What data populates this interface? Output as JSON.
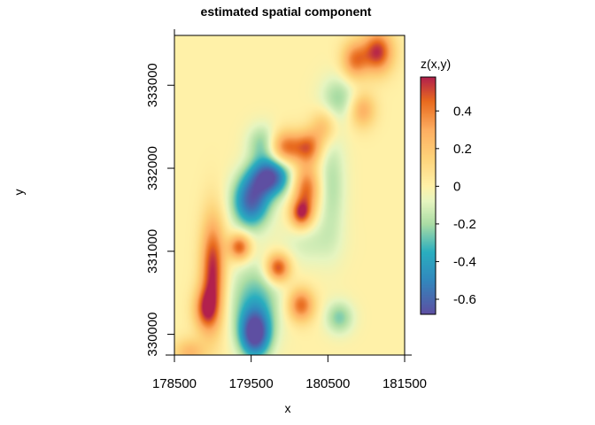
{
  "chart_data": {
    "type": "heatmap",
    "title": "estimated spatial component",
    "xlabel": "x",
    "ylabel": "y",
    "xlim": [
      178500,
      181500
    ],
    "ylim": [
      329750,
      333600
    ],
    "xticks": [
      178500,
      179500,
      180500,
      181500
    ],
    "xtick_labels": [
      "178500",
      "179500",
      "180500",
      "181500"
    ],
    "yticks": [
      330000,
      331000,
      332000,
      333000
    ],
    "ytick_labels": [
      "330000",
      "331000",
      "332000",
      "333000"
    ],
    "colorbar": {
      "title": "z(x,y)",
      "range": [
        -0.68,
        0.58
      ],
      "ticks": [
        0.4,
        0.2,
        0,
        -0.2,
        -0.4,
        -0.6
      ],
      "tick_labels": [
        "0.4",
        "0.2",
        "0",
        "-0.2",
        "-0.4",
        "-0.6"
      ],
      "stops": [
        {
          "value": -0.68,
          "color": "#5e4fa2"
        },
        {
          "value": -0.5,
          "color": "#3288bd"
        },
        {
          "value": -0.35,
          "color": "#2aaebf"
        },
        {
          "value": -0.2,
          "color": "#abdda4"
        },
        {
          "value": -0.08,
          "color": "#e6f5c0"
        },
        {
          "value": 0,
          "color": "#fff1a8"
        },
        {
          "value": 0.15,
          "color": "#fdd37a"
        },
        {
          "value": 0.3,
          "color": "#fdae61"
        },
        {
          "value": 0.45,
          "color": "#e86a1e"
        },
        {
          "value": 0.58,
          "color": "#b2204d"
        }
      ]
    },
    "features": [
      {
        "x": 181150,
        "y": 333400,
        "z": 0.55,
        "sx": 140,
        "sy": 180
      },
      {
        "x": 180850,
        "y": 333300,
        "z": 0.4,
        "sx": 120,
        "sy": 160
      },
      {
        "x": 180650,
        "y": 332850,
        "z": -0.2,
        "sx": 170,
        "sy": 190
      },
      {
        "x": 180950,
        "y": 332700,
        "z": 0.3,
        "sx": 120,
        "sy": 150
      },
      {
        "x": 180450,
        "y": 332500,
        "z": 0.25,
        "sx": 120,
        "sy": 150
      },
      {
        "x": 179950,
        "y": 332250,
        "z": 0.45,
        "sx": 150,
        "sy": 140
      },
      {
        "x": 180250,
        "y": 332250,
        "z": 0.4,
        "sx": 120,
        "sy": 140
      },
      {
        "x": 180220,
        "y": 331750,
        "z": 0.45,
        "sx": 120,
        "sy": 200
      },
      {
        "x": 180150,
        "y": 331450,
        "z": 0.5,
        "sx": 100,
        "sy": 120
      },
      {
        "x": 180550,
        "y": 331800,
        "z": -0.18,
        "sx": 130,
        "sy": 500
      },
      {
        "x": 180250,
        "y": 331100,
        "z": -0.12,
        "sx": 250,
        "sy": 200
      },
      {
        "x": 179750,
        "y": 331900,
        "z": -0.65,
        "sx": 180,
        "sy": 160
      },
      {
        "x": 179500,
        "y": 331600,
        "z": -0.6,
        "sx": 170,
        "sy": 220
      },
      {
        "x": 179650,
        "y": 332300,
        "z": -0.25,
        "sx": 140,
        "sy": 160
      },
      {
        "x": 179350,
        "y": 331050,
        "z": 0.5,
        "sx": 100,
        "sy": 110
      },
      {
        "x": 179000,
        "y": 330750,
        "z": 0.58,
        "sx": 110,
        "sy": 460
      },
      {
        "x": 178900,
        "y": 330300,
        "z": 0.4,
        "sx": 110,
        "sy": 180
      },
      {
        "x": 179850,
        "y": 330800,
        "z": 0.55,
        "sx": 110,
        "sy": 120
      },
      {
        "x": 179550,
        "y": 330400,
        "z": -0.3,
        "sx": 230,
        "sy": 320
      },
      {
        "x": 179550,
        "y": 330000,
        "z": -0.68,
        "sx": 140,
        "sy": 200
      },
      {
        "x": 180150,
        "y": 330350,
        "z": 0.45,
        "sx": 120,
        "sy": 140
      },
      {
        "x": 180650,
        "y": 330200,
        "z": -0.25,
        "sx": 130,
        "sy": 140
      },
      {
        "x": 178700,
        "y": 329780,
        "z": 0.25,
        "sx": 150,
        "sy": 120
      }
    ]
  }
}
